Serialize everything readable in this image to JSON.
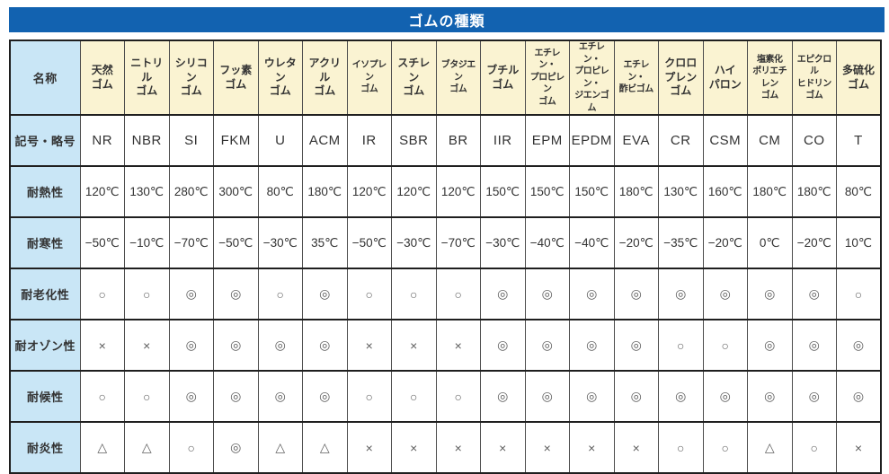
{
  "title": "ゴムの種類",
  "colors": {
    "title_bar": "#1262b0",
    "title_text": "#ffffff",
    "label_column_bg": "#c9e6f6",
    "header_row_bg": "#faf3d2",
    "cell_bg": "#ffffff",
    "grid_line": "#1f1f1f",
    "text": "#333333"
  },
  "table": {
    "header": {
      "label": "名称",
      "columns": [
        "天然\nゴム",
        "ニトリル\nゴム",
        "シリコン\nゴム",
        "フッ素\nゴム",
        "ウレタン\nゴム",
        "アクリル\nゴム",
        "イソプレン\nゴム",
        "スチレン\nゴム",
        "ブタジエン\nゴム",
        "ブチル\nゴム",
        "エチレン・\nプロピレン\nゴム",
        "エチレン・\nプロピレン・\nジエンゴム",
        "エチレン・\n酢ビゴム",
        "クロロ\nプレン\nゴム",
        "ハイ\nパロン",
        "塩素化\nポリエチレン\nゴム",
        "エピクロル\nヒドリン\nゴム",
        "多硫化\nゴム"
      ]
    },
    "rows": [
      {
        "label": "記号・略号",
        "kind": "symbol",
        "values": [
          "NR",
          "NBR",
          "SI",
          "FKM",
          "U",
          "ACM",
          "IR",
          "SBR",
          "BR",
          "IIR",
          "EPM",
          "EPDM",
          "EVA",
          "CR",
          "CSM",
          "CM",
          "CO",
          "T"
        ]
      },
      {
        "label": "耐熱性",
        "kind": "temp",
        "values": [
          "120℃",
          "130℃",
          "280℃",
          "300℃",
          "80℃",
          "180℃",
          "120℃",
          "120℃",
          "120℃",
          "150℃",
          "150℃",
          "150℃",
          "180℃",
          "130℃",
          "160℃",
          "180℃",
          "180℃",
          "80℃"
        ]
      },
      {
        "label": "耐寒性",
        "kind": "temp",
        "values": [
          "−50℃",
          "−10℃",
          "−70℃",
          "−50℃",
          "−30℃",
          "35℃",
          "−50℃",
          "−30℃",
          "−70℃",
          "−30℃",
          "−40℃",
          "−40℃",
          "−20℃",
          "−35℃",
          "−20℃",
          "0℃",
          "−20℃",
          "10℃"
        ]
      },
      {
        "label": "耐老化性",
        "kind": "mark",
        "values": [
          "○",
          "○",
          "◎",
          "◎",
          "○",
          "◎",
          "○",
          "○",
          "○",
          "◎",
          "◎",
          "◎",
          "◎",
          "◎",
          "◎",
          "◎",
          "◎",
          "○"
        ]
      },
      {
        "label": "耐オゾン性",
        "kind": "mark",
        "values": [
          "×",
          "×",
          "◎",
          "◎",
          "◎",
          "◎",
          "×",
          "×",
          "×",
          "◎",
          "◎",
          "◎",
          "◎",
          "○",
          "○",
          "◎",
          "◎",
          "◎"
        ]
      },
      {
        "label": "耐候性",
        "kind": "mark",
        "values": [
          "○",
          "○",
          "◎",
          "◎",
          "◎",
          "◎",
          "○",
          "○",
          "○",
          "◎",
          "◎",
          "◎",
          "◎",
          "◎",
          "◎",
          "◎",
          "◎",
          "◎"
        ]
      },
      {
        "label": "耐炎性",
        "kind": "mark",
        "values": [
          "△",
          "△",
          "○",
          "◎",
          "△",
          "△",
          "×",
          "×",
          "×",
          "×",
          "×",
          "×",
          "×",
          "○",
          "○",
          "△",
          "○",
          "×"
        ]
      }
    ]
  }
}
